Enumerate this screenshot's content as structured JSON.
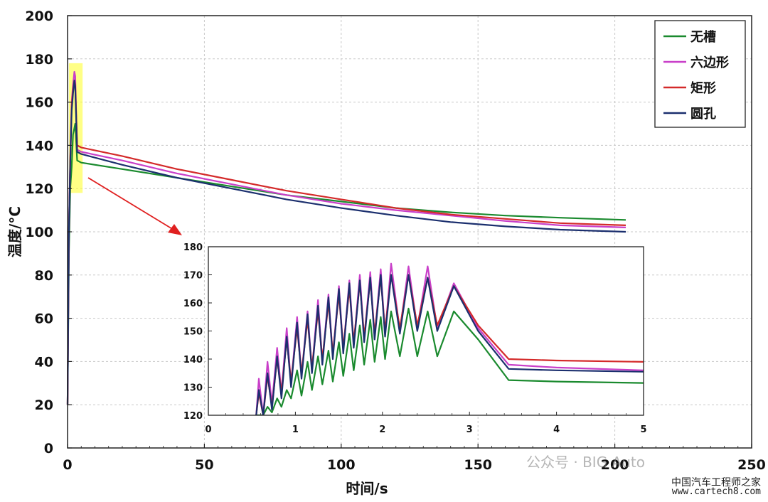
{
  "chart_data": [
    {
      "type": "line",
      "xlabel": "时间/s",
      "ylabel": "温度/°C",
      "xlim": [
        0,
        250
      ],
      "ylim": [
        0,
        200
      ],
      "xticks": [
        0,
        50,
        100,
        150,
        200,
        250
      ],
      "yticks": [
        0,
        20,
        40,
        60,
        80,
        100,
        120,
        140,
        160,
        180,
        200
      ],
      "grid": true,
      "legend_position": "top-right",
      "series": [
        {
          "name": "无槽",
          "color": "#1a8a2e",
          "x": [
            0,
            0.5,
            1,
            1.5,
            2,
            2.5,
            2.8,
            3.5,
            5,
            20,
            40,
            60,
            80,
            100,
            120,
            140,
            160,
            180,
            204
          ],
          "y": [
            20,
            90,
            120,
            130,
            145,
            148,
            150,
            133,
            132,
            129,
            125,
            121,
            117,
            114,
            111,
            109,
            107.5,
            106.5,
            105.5
          ]
        },
        {
          "name": "六边形",
          "color": "#c93fc9",
          "x": [
            0,
            0.5,
            1,
            1.5,
            2,
            2.5,
            2.8,
            3.5,
            5,
            20,
            40,
            60,
            80,
            100,
            120,
            140,
            160,
            180,
            204
          ],
          "y": [
            20,
            100,
            135,
            160,
            168,
            174,
            172,
            138,
            137,
            133,
            127,
            122,
            117,
            113,
            110,
            107.5,
            105,
            103,
            102
          ]
        },
        {
          "name": "矩形",
          "color": "#d42a2a",
          "x": [
            0,
            0.5,
            1,
            1.5,
            2,
            2.5,
            2.8,
            3.5,
            5,
            20,
            40,
            60,
            80,
            100,
            120,
            140,
            160,
            180,
            204
          ],
          "y": [
            20,
            100,
            133,
            158,
            166,
            170,
            168,
            140,
            139,
            135,
            129,
            124,
            119,
            115,
            111,
            108,
            106,
            104,
            103
          ]
        },
        {
          "name": "圆孔",
          "color": "#1b2f6e",
          "x": [
            0,
            0.5,
            1,
            1.5,
            2,
            2.5,
            2.8,
            3.5,
            5,
            20,
            40,
            60,
            80,
            100,
            120,
            140,
            160,
            180,
            204
          ],
          "y": [
            20,
            100,
            132,
            156,
            164,
            170,
            167,
            137,
            136,
            131,
            125,
            120,
            115,
            111,
            107.5,
            104.5,
            102.5,
            101,
            100
          ]
        }
      ]
    },
    {
      "type": "line",
      "xlim": [
        0,
        5
      ],
      "ylim": [
        120,
        180
      ],
      "xticks": [
        0,
        1,
        2,
        3,
        4,
        5
      ],
      "yticks": [
        120,
        130,
        140,
        150,
        160,
        170,
        180
      ],
      "grid": false,
      "peaks": {
        "times": [
          0.58,
          0.68,
          0.79,
          0.9,
          1.02,
          1.14,
          1.26,
          1.38,
          1.5,
          1.62,
          1.74,
          1.86,
          1.98,
          2.1,
          2.3,
          2.52,
          2.82
        ],
        "troughs_times": [
          0.63,
          0.73,
          0.84,
          0.95,
          1.07,
          1.19,
          1.31,
          1.43,
          1.55,
          1.67,
          1.79,
          1.91,
          2.03,
          2.2,
          2.4,
          2.63,
          2.77
        ]
      },
      "series": [
        {
          "name": "无槽",
          "color": "#1a8a2e",
          "peak_values": [
            120,
            123,
            126,
            129,
            136,
            139,
            141,
            143,
            146,
            149,
            152,
            154,
            155,
            157,
            158,
            157,
            157
          ],
          "trough_values": [
            120,
            121,
            123,
            126,
            127,
            129,
            131,
            132,
            134,
            136,
            138,
            139,
            140,
            141,
            141,
            141,
            138
          ],
          "tail_x": [
            2.82,
            3.1,
            3.45,
            4.0,
            5.0
          ],
          "tail_y": [
            157,
            147,
            132.5,
            132,
            131.5
          ]
        },
        {
          "name": "六边形",
          "color": "#c93fc9",
          "peak_values": [
            133,
            139,
            144,
            151,
            155,
            157,
            161,
            163,
            166,
            168,
            170,
            171,
            172,
            174,
            173,
            173,
            167
          ],
          "trough_values": [
            120,
            124,
            128,
            131,
            134,
            136,
            139,
            141,
            143,
            145,
            147,
            148,
            149,
            150,
            151,
            151,
            149
          ],
          "tail_x": [
            2.82,
            3.1,
            3.45,
            4.0,
            5.0
          ],
          "tail_y": [
            167,
            151,
            138,
            137,
            136
          ]
        },
        {
          "name": "矩形",
          "color": "#d42a2a",
          "peak_values": [
            128,
            134,
            140,
            147,
            151,
            154,
            157,
            160,
            163,
            165,
            167,
            168,
            169,
            170,
            170,
            169,
            166
          ],
          "trough_values": [
            120,
            123,
            128,
            132,
            135,
            137,
            140,
            142,
            144,
            146,
            148,
            149,
            150,
            151,
            152,
            152,
            150
          ],
          "tail_x": [
            2.82,
            3.1,
            3.45,
            4.0,
            5.0
          ],
          "tail_y": [
            166,
            152,
            140,
            139.5,
            139
          ]
        },
        {
          "name": "圆孔",
          "color": "#1b2f6e",
          "peak_values": [
            129,
            135,
            141,
            148,
            153,
            156,
            159,
            162,
            165,
            167,
            168,
            169,
            170,
            170,
            170,
            169,
            166
          ],
          "trough_values": [
            120,
            122,
            126,
            130,
            133,
            135,
            138,
            140,
            142,
            144,
            146,
            147,
            148,
            149,
            150,
            150,
            148
          ],
          "tail_x": [
            2.82,
            3.1,
            3.45,
            4.0,
            5.0
          ],
          "tail_y": [
            166,
            150,
            136.5,
            136,
            135.5
          ]
        }
      ]
    }
  ],
  "watermark": {
    "line1": "公众号 · BIG Auto",
    "line2": "中国汽车工程师之家",
    "line3": "www.cartech8.com"
  }
}
